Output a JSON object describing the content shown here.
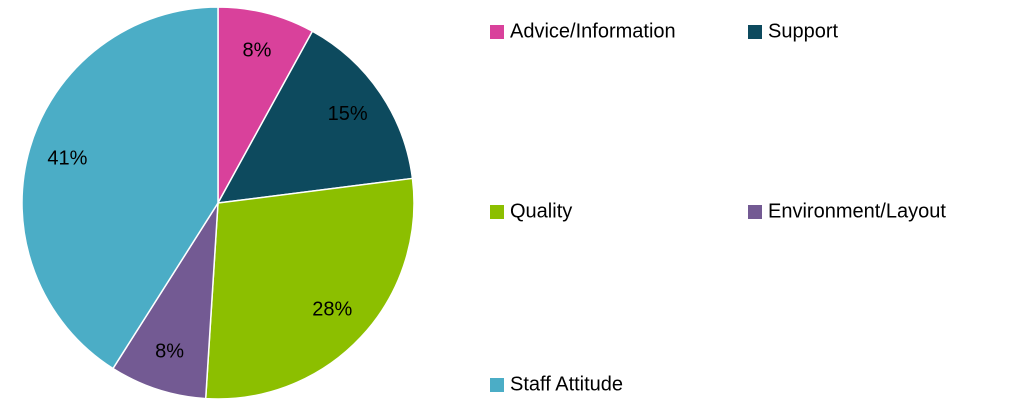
{
  "chart_data": {
    "type": "pie",
    "categories": [
      "Advice/Information",
      "Support",
      "Quality",
      "Environment/Layout",
      "Staff Attitude"
    ],
    "values": [
      8,
      15,
      28,
      8,
      41
    ],
    "value_labels": [
      "8%",
      "15%",
      "28%",
      "8%",
      "41%"
    ],
    "colors": [
      "#d9419b",
      "#0d4a5e",
      "#8cbf00",
      "#735a93",
      "#4badc6"
    ],
    "legend": "right"
  }
}
